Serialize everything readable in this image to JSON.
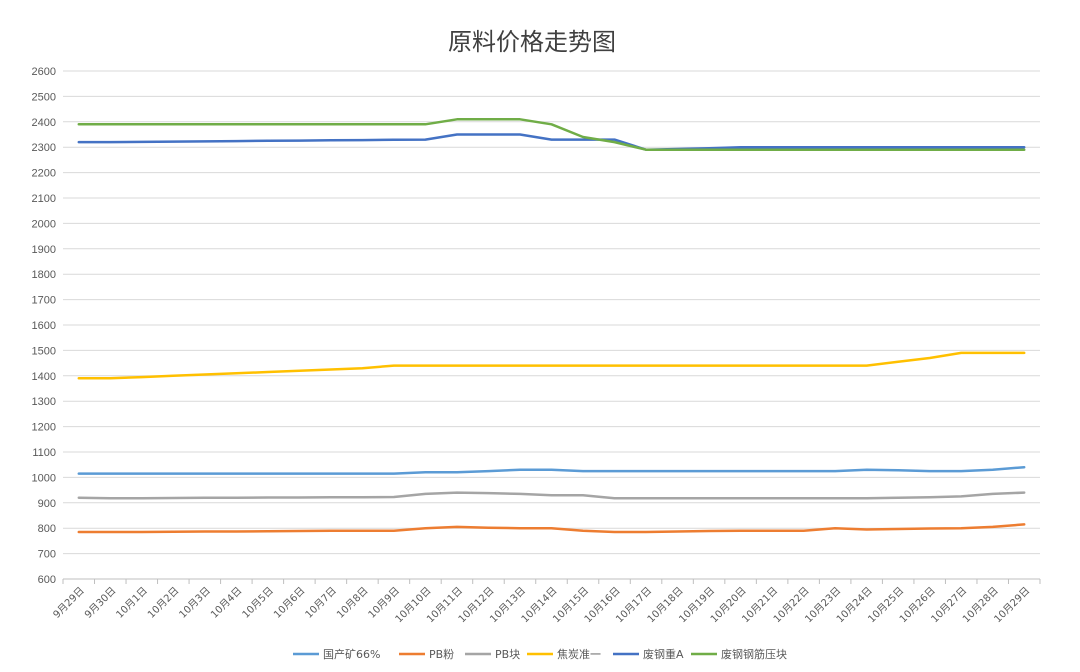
{
  "chart_data": {
    "type": "line",
    "title": "原料价格走势图",
    "xlabel": "",
    "ylabel": "",
    "ylim": [
      600,
      2600
    ],
    "yticks": [
      600,
      700,
      800,
      900,
      1000,
      1100,
      1200,
      1300,
      1400,
      1500,
      1600,
      1700,
      1800,
      1900,
      2000,
      2100,
      2200,
      2300,
      2400,
      2500,
      2600
    ],
    "grid": true,
    "legend_position": "bottom",
    "categories": [
      "9月29日",
      "9月30日",
      "10月1日",
      "10月2日",
      "10月3日",
      "10月4日",
      "10月5日",
      "10月6日",
      "10月7日",
      "10月8日",
      "10月9日",
      "10月10日",
      "10月11日",
      "10月12日",
      "10月13日",
      "10月14日",
      "10月15日",
      "10月16日",
      "10月17日",
      "10月18日",
      "10月19日",
      "10月20日",
      "10月21日",
      "10月22日",
      "10月23日",
      "10月24日",
      "10月25日",
      "10月26日",
      "10月27日",
      "10月28日",
      "10月29日"
    ],
    "series": [
      {
        "name": "国产矿66%",
        "color": "#5B9BD5",
        "values": [
          1015,
          1015,
          1015,
          1015,
          1015,
          1015,
          1015,
          1015,
          1015,
          1015,
          1015,
          1020,
          1020,
          1025,
          1030,
          1030,
          1025,
          1025,
          1025,
          1025,
          1025,
          1025,
          1025,
          1025,
          1025,
          1030,
          1028,
          1025,
          1025,
          1030,
          1040
        ]
      },
      {
        "name": "PB粉",
        "color": "#ED7D31",
        "values": [
          785,
          785,
          785,
          786,
          787,
          787,
          788,
          789,
          790,
          790,
          790,
          800,
          805,
          802,
          800,
          800,
          790,
          785,
          785,
          787,
          789,
          790,
          790,
          790,
          800,
          795,
          797,
          799,
          800,
          805,
          815
        ]
      },
      {
        "name": "PB块",
        "color": "#A5A5A5",
        "values": [
          920,
          918,
          918,
          919,
          920,
          920,
          921,
          921,
          922,
          922,
          923,
          935,
          940,
          938,
          935,
          930,
          930,
          918,
          918,
          918,
          918,
          918,
          918,
          918,
          918,
          918,
          920,
          922,
          925,
          935,
          940
        ]
      },
      {
        "name": "焦炭准一",
        "color": "#FFC000",
        "values": [
          1390,
          1390,
          1395,
          1400,
          1405,
          1410,
          1415,
          1420,
          1425,
          1430,
          1440,
          1440,
          1440,
          1440,
          1440,
          1440,
          1440,
          1440,
          1440,
          1440,
          1440,
          1440,
          1440,
          1440,
          1440,
          1440,
          1455,
          1470,
          1490,
          1490,
          1490
        ]
      },
      {
        "name": "废钢重A",
        "color": "#4472C4",
        "values": [
          2320,
          2320,
          2321,
          2322,
          2323,
          2324,
          2325,
          2326,
          2327,
          2328,
          2329,
          2330,
          2350,
          2350,
          2350,
          2330,
          2330,
          2330,
          2290,
          2293,
          2296,
          2300,
          2300,
          2300,
          2300,
          2300,
          2300,
          2300,
          2300,
          2300,
          2300
        ]
      },
      {
        "name": "废钢钢筋压块",
        "color": "#70AD47",
        "values": [
          2390,
          2390,
          2390,
          2390,
          2390,
          2390,
          2390,
          2390,
          2390,
          2390,
          2390,
          2390,
          2410,
          2410,
          2410,
          2390,
          2340,
          2320,
          2290,
          2290,
          2290,
          2290,
          2290,
          2290,
          2290,
          2290,
          2290,
          2290,
          2290,
          2290,
          2290
        ]
      }
    ]
  }
}
